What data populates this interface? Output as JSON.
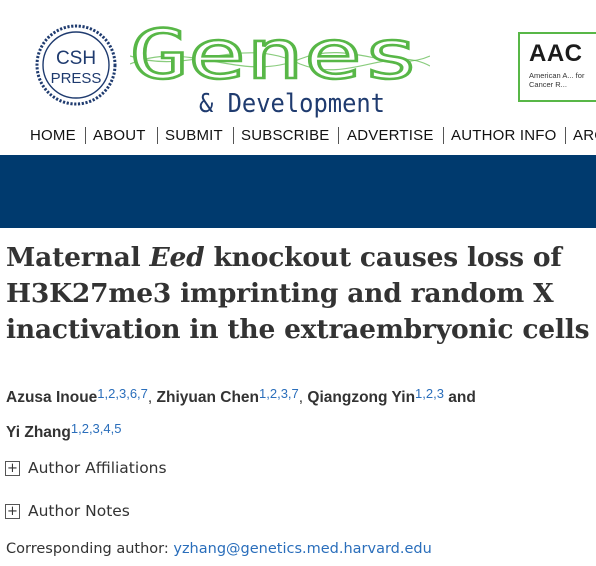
{
  "header": {
    "cshl_logo_text_top": "CSH",
    "cshl_logo_text_bottom": "PRESS",
    "journal_name": "Genes",
    "journal_sub": "& Development",
    "banner_title": "AAC",
    "banner_sub": "American A... for Cancer R...",
    "brand_green": "#58b747",
    "brand_navy": "#1f3b6f"
  },
  "nav": {
    "items": [
      "HOME",
      "ABOUT",
      "SUBMIT",
      "SUBSCRIBE",
      "ADVERTISE",
      "AUTHOR INFO",
      "ARC"
    ]
  },
  "band_color": "#003a6e",
  "article": {
    "title_part1": "Maternal ",
    "title_italic": "Eed",
    "title_part2": " knockout causes loss of H3K27me3 imprinting and random X inactivation in the extraembryonic cells",
    "authors": [
      {
        "name": "Azusa Inoue",
        "affiliations": "1,2,3,6,7",
        "sep": ", "
      },
      {
        "name": "Zhiyuan Chen",
        "affiliations": "1,2,3,7",
        "sep": ", "
      },
      {
        "name": "Qiangzong Yin",
        "affiliations": "1,2,3",
        "sep": " and "
      },
      {
        "name": "Yi Zhang",
        "affiliations": "1,2,3,4,5",
        "sep": ""
      }
    ],
    "author_affiliations_label": "Author Affiliations",
    "author_notes_label": "Author Notes",
    "expand_icon": "+",
    "corresponding_label": "Corresponding author: ",
    "corresponding_email": "yzhang@genetics.med.harvard.edu",
    "link_color": "#2a6ebb"
  }
}
